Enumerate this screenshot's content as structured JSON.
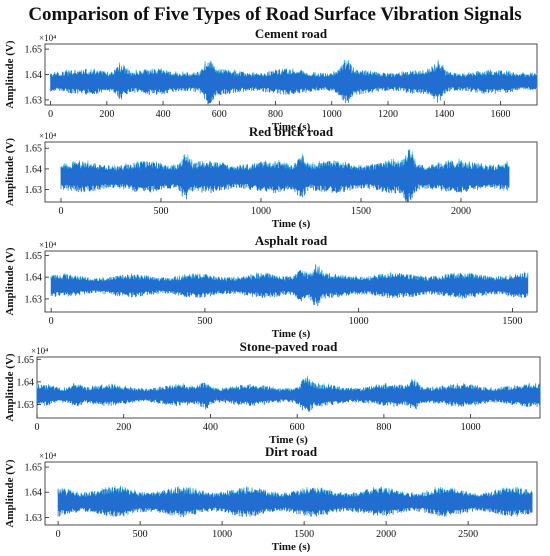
{
  "figure": {
    "title": "Comparison of Five Types of Road Surface Vibration Signals"
  },
  "chart_data": [
    {
      "type": "line",
      "title": "Cement road",
      "xlabel": "Time (s)",
      "ylabel": "Amplitude (V)",
      "y_exponent_label": "×10⁴",
      "xlim": [
        -20,
        1730
      ],
      "ylim": [
        16280,
        16520
      ],
      "xticks": [
        0,
        200,
        400,
        600,
        800,
        1000,
        1200,
        1400,
        1600
      ],
      "yticks": [
        16300,
        16400,
        16500
      ],
      "ytick_labels": [
        "1.63",
        "1.64",
        "1.65"
      ],
      "signal": {
        "duration": 1730,
        "mean": 16370,
        "noise_amplitude": 35,
        "burst_times": [
          250,
          560,
          1050,
          1380
        ]
      },
      "grid": false
    },
    {
      "type": "line",
      "title": "Red brick road",
      "xlabel": "Time (s)",
      "ylabel": "Amplitude (V)",
      "y_exponent_label": "×10⁴",
      "xlim": [
        -80,
        2380
      ],
      "ylim": [
        16240,
        16530
      ],
      "xticks": [
        0,
        500,
        1000,
        1500,
        2000
      ],
      "yticks": [
        16300,
        16400,
        16500
      ],
      "ytick_labels": [
        "1.63",
        "1.64",
        "1.65"
      ],
      "signal": {
        "duration": 2240,
        "mean": 16360,
        "noise_amplitude": 55,
        "burst_times": [
          620,
          1200,
          1740
        ]
      },
      "grid": false
    },
    {
      "type": "line",
      "title": "Asphalt road",
      "xlabel": "Time (s)",
      "ylabel": "Amplitude (V)",
      "y_exponent_label": "×10⁴",
      "xlim": [
        -20,
        1580
      ],
      "ylim": [
        16240,
        16520
      ],
      "xticks": [
        0,
        500,
        1000,
        1500
      ],
      "yticks": [
        16300,
        16400,
        16500
      ],
      "ytick_labels": [
        "1.63",
        "1.64",
        "1.65"
      ],
      "signal": {
        "duration": 1550,
        "mean": 16360,
        "noise_amplitude": 45,
        "burst_times": [
          810,
          860
        ]
      },
      "grid": false
    },
    {
      "type": "line",
      "title": "Stone-paved road",
      "xlabel": "Time (s)",
      "ylabel": "Amplitude (V)",
      "y_exponent_label": "×10⁴",
      "xlim": [
        0,
        1160
      ],
      "ylim": [
        16240,
        16510
      ],
      "xticks": [
        0,
        200,
        400,
        600,
        800,
        1000
      ],
      "yticks": [
        16300,
        16400,
        16500
      ],
      "ytick_labels": [
        "1.63",
        "1.64",
        "1.65"
      ],
      "signal": {
        "duration": 1160,
        "mean": 16340,
        "noise_amplitude": 45,
        "burst_times": [
          90,
          390,
          620,
          870
        ]
      },
      "grid": false
    },
    {
      "type": "line",
      "title": "Dirt road",
      "xlabel": "Time (s)",
      "ylabel": "Amplitude (V)",
      "y_exponent_label": "×10⁴",
      "xlim": [
        -80,
        2920
      ],
      "ylim": [
        16270,
        16520
      ],
      "xticks": [
        0,
        500,
        1000,
        1500,
        2000,
        2500
      ],
      "yticks": [
        16300,
        16400,
        16500
      ],
      "ytick_labels": [
        "1.63",
        "1.64",
        "1.65"
      ],
      "signal": {
        "duration": 2890,
        "mean": 16360,
        "noise_amplitude": 55,
        "burst_times": []
      },
      "grid": false
    }
  ],
  "colors": {
    "signal": "#1f6fd0",
    "signal_edge": "#19c3d6",
    "signal_accent": "#8b3fd8",
    "axis": "#222222",
    "text": "#111111"
  }
}
